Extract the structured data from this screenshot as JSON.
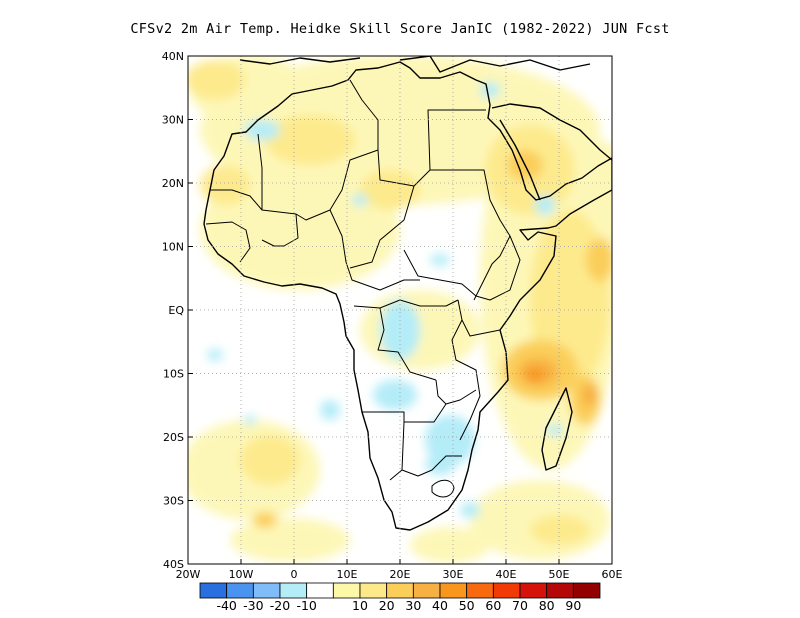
{
  "title": "CFSv2  2m Air Temp. Heidke Skill Score JanIC (1982-2022) JUN Fcst",
  "map": {
    "lon_labels": [
      "20W",
      "10W",
      "0",
      "10E",
      "20E",
      "30E",
      "40E",
      "50E",
      "60E"
    ],
    "lat_labels": [
      "40N",
      "30N",
      "20N",
      "10N",
      "EQ",
      "10S",
      "20S",
      "30S",
      "40S"
    ],
    "lon_range": [
      -20,
      60
    ],
    "lat_range": [
      -40,
      40
    ],
    "grid": "dotted",
    "land_outline": "black country borders"
  },
  "colorbar": {
    "colors": [
      "#2a6fe0",
      "#4a94f0",
      "#80bdf8",
      "#b4ecf8",
      "#ffffff",
      "#fdf7a8",
      "#fde98a",
      "#fbce5a",
      "#f7b143",
      "#f8961e",
      "#f76a10",
      "#f23a06",
      "#d4140a",
      "#b40707",
      "#930000"
    ],
    "labels": [
      "-40",
      "-30",
      "-20",
      "-10",
      "10",
      "20",
      "30",
      "40",
      "50",
      "60",
      "70",
      "80",
      "90"
    ]
  }
}
